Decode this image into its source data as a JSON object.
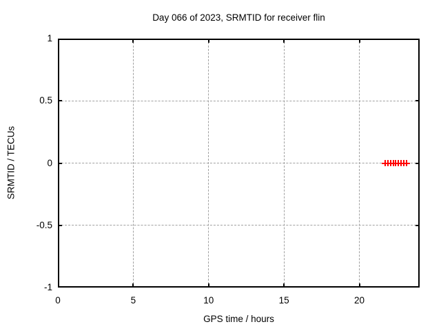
{
  "chart_data": {
    "type": "scatter",
    "title": "Day 066 of 2023, SRMTID for receiver flin",
    "xlabel": "GPS time / hours",
    "ylabel": "SRMTID / TECUs",
    "xlim": [
      0,
      24
    ],
    "ylim": [
      -1,
      1
    ],
    "x_ticks": [
      0,
      5,
      10,
      15,
      20
    ],
    "x_tick_labels": [
      "0",
      "5",
      "10",
      "15",
      "20"
    ],
    "y_ticks": [
      -1,
      -0.5,
      0,
      0.5,
      1
    ],
    "y_tick_labels": [
      "-1",
      "-0.5",
      "0",
      "0.5",
      "1"
    ],
    "grid": true,
    "grid_style": "dashed",
    "legend": "none",
    "series": [
      {
        "name": "SRMTID",
        "marker": "plus",
        "color": "#ff0000",
        "points": [
          {
            "x": 21.7,
            "y": 0
          },
          {
            "x": 21.88,
            "y": 0
          },
          {
            "x": 22.06,
            "y": 0
          },
          {
            "x": 22.24,
            "y": 0
          },
          {
            "x": 22.42,
            "y": 0
          },
          {
            "x": 22.6,
            "y": 0
          },
          {
            "x": 22.78,
            "y": 0
          },
          {
            "x": 22.96,
            "y": 0
          },
          {
            "x": 23.14,
            "y": 0
          }
        ]
      }
    ],
    "colors": {
      "background": "#ffffff",
      "text": "#000000",
      "border": "#000000",
      "grid": "#a0a0a0",
      "marker": "#ff0000"
    }
  }
}
